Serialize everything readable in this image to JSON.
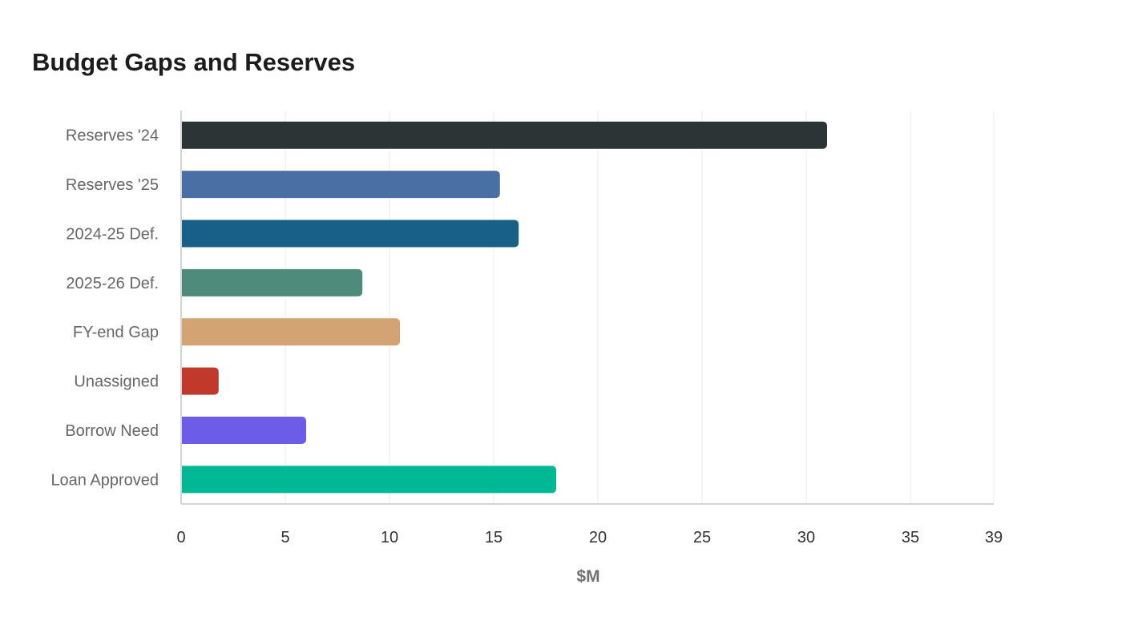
{
  "chart_data": {
    "type": "bar",
    "orientation": "horizontal",
    "title": "Budget Gaps and Reserves",
    "xlabel": "$M",
    "ylabel": "",
    "xlim": [
      0,
      39
    ],
    "xticks": [
      "0",
      "5",
      "10",
      "15",
      "20",
      "25",
      "30",
      "35",
      "39"
    ],
    "grid": true,
    "categories": [
      "Reserves '24",
      "Reserves '25",
      "2024-25 Def.",
      "2025-26 Def.",
      "FY-end Gap",
      "Unassigned",
      "Borrow Need",
      "Loan Approved"
    ],
    "values": [
      31.0,
      15.3,
      16.2,
      8.7,
      10.5,
      1.8,
      6.0,
      18.0
    ],
    "colors": [
      "#2d3436",
      "#4a6fa5",
      "#196089",
      "#4e8b7a",
      "#d4a373",
      "#c0392b",
      "#6c5ce7",
      "#00b894"
    ]
  }
}
